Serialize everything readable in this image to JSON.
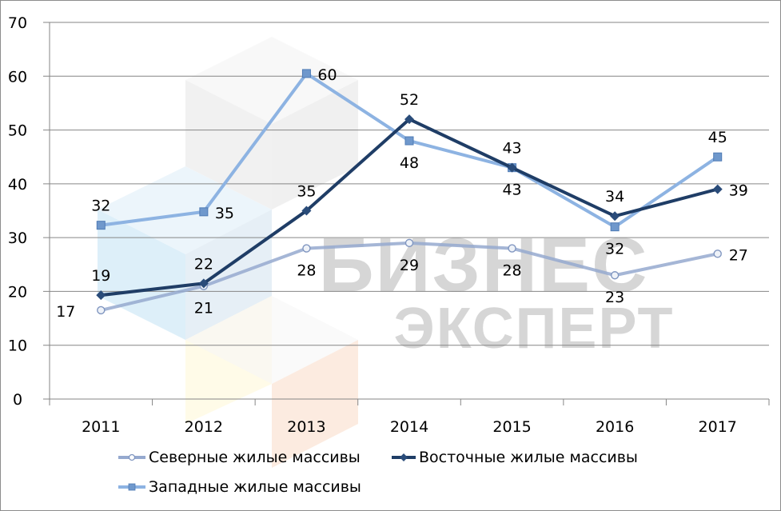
{
  "chart_data": {
    "type": "line",
    "title": "",
    "xlabel": "",
    "ylabel": "",
    "categories": [
      "2011",
      "2012",
      "2013",
      "2014",
      "2015",
      "2016",
      "2017"
    ],
    "ylim": [
      0,
      70
    ],
    "yticks": [
      0,
      10,
      20,
      30,
      40,
      50,
      60,
      70
    ],
    "grid": true,
    "legend_position": "bottom",
    "series": [
      {
        "name": "Северные жилые массивы",
        "values": [
          17,
          21,
          28,
          29,
          28,
          23,
          27
        ],
        "plotted": [
          16.5,
          21,
          28,
          29,
          28,
          23,
          27
        ],
        "color": "#95A9CF",
        "marker": "circle",
        "label_pos": [
          "left",
          "below",
          "below",
          "below",
          "below",
          "below",
          "right"
        ]
      },
      {
        "name": "Восточные жилые массивы",
        "values": [
          19,
          22,
          35,
          52,
          43,
          34,
          39
        ],
        "plotted": [
          19.3,
          21.5,
          35,
          52,
          43,
          34,
          39
        ],
        "color": "#1F3D66",
        "marker": "diamond",
        "label_pos": [
          "above",
          "above",
          "above",
          "above",
          "above",
          "above",
          "right"
        ]
      },
      {
        "name": "Западные жилые массивы",
        "values": [
          32,
          35,
          60,
          48,
          43,
          32,
          45
        ],
        "plotted": [
          32.3,
          34.8,
          60.5,
          48,
          43,
          32,
          45
        ],
        "color": "#8DB3E2",
        "marker": "square",
        "label_pos": [
          "above",
          "right",
          "right",
          "below",
          "below",
          "below",
          "above"
        ]
      }
    ],
    "watermark": [
      "БИЗНЕС",
      "ЭКСПЕРТ"
    ]
  },
  "legend": {
    "items": [
      {
        "label": "Северные жилые массивы"
      },
      {
        "label": "Восточные жилые массивы"
      },
      {
        "label": "Западные жилые массивы"
      }
    ]
  }
}
